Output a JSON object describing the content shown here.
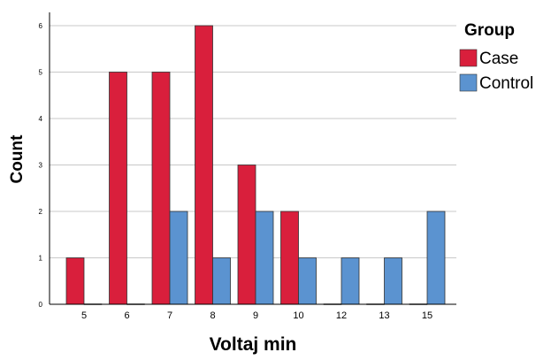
{
  "chart_data": {
    "type": "bar",
    "categories": [
      "5",
      "6",
      "7",
      "8",
      "9",
      "10",
      "12",
      "13",
      "15"
    ],
    "series": [
      {
        "name": "Case",
        "values": [
          1,
          5,
          5,
          6,
          3,
          2,
          0,
          0,
          0
        ],
        "color": "#d91f3c"
      },
      {
        "name": "Control",
        "values": [
          0,
          0,
          2,
          1,
          2,
          1,
          1,
          1,
          2
        ],
        "color": "#5b93d0"
      }
    ],
    "xlabel": "Voltaj min",
    "ylabel": "Count",
    "ylim": [
      0,
      6
    ],
    "yticks": [
      "0",
      "1",
      "2",
      "3",
      "4",
      "5",
      "6"
    ],
    "grid": true,
    "legend": {
      "title": "Group",
      "placement": "right"
    }
  }
}
